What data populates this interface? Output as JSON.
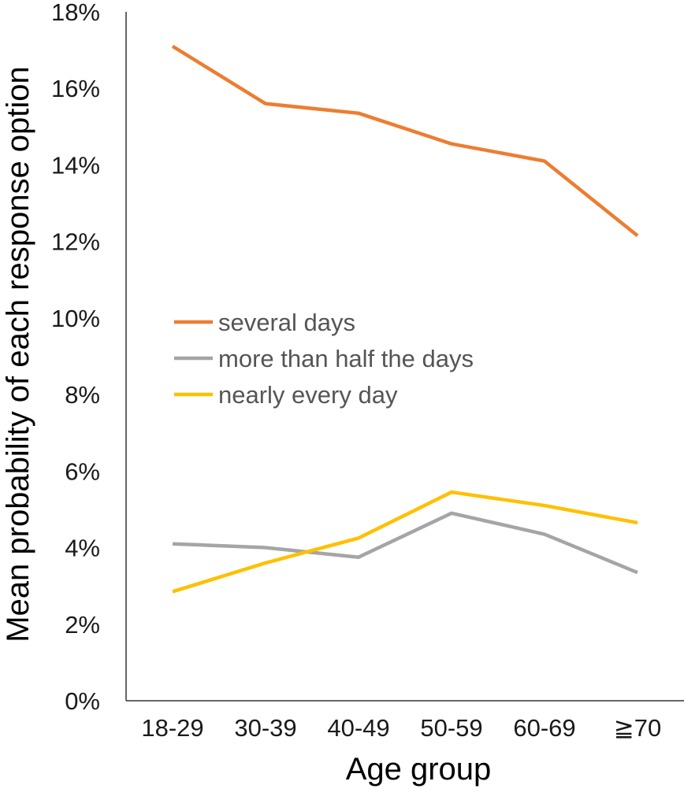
{
  "chart_data": {
    "type": "line",
    "title": "",
    "xlabel": "Age group",
    "ylabel": "Mean probability of each response option",
    "categories": [
      "18-29",
      "30-39",
      "40-49",
      "50-59",
      "60-69",
      "≧70"
    ],
    "ylim": [
      0,
      18
    ],
    "yticks": [
      0,
      2,
      4,
      6,
      8,
      10,
      12,
      14,
      16,
      18
    ],
    "ytick_labels": [
      "0%",
      "2%",
      "4%",
      "6%",
      "8%",
      "10%",
      "12%",
      "14%",
      "16%",
      "18%"
    ],
    "grid": false,
    "legend_position": "center-left",
    "series": [
      {
        "name": "several days",
        "color": "#ED7D31",
        "values": [
          17.1,
          15.6,
          15.35,
          14.55,
          14.1,
          12.15
        ]
      },
      {
        "name": "more than half the days",
        "color": "#A5A5A5",
        "values": [
          4.1,
          4.0,
          3.75,
          4.9,
          4.35,
          3.35
        ]
      },
      {
        "name": "nearly every day",
        "color": "#FFC000",
        "values": [
          2.85,
          3.6,
          4.25,
          5.45,
          5.1,
          4.65
        ]
      }
    ]
  }
}
